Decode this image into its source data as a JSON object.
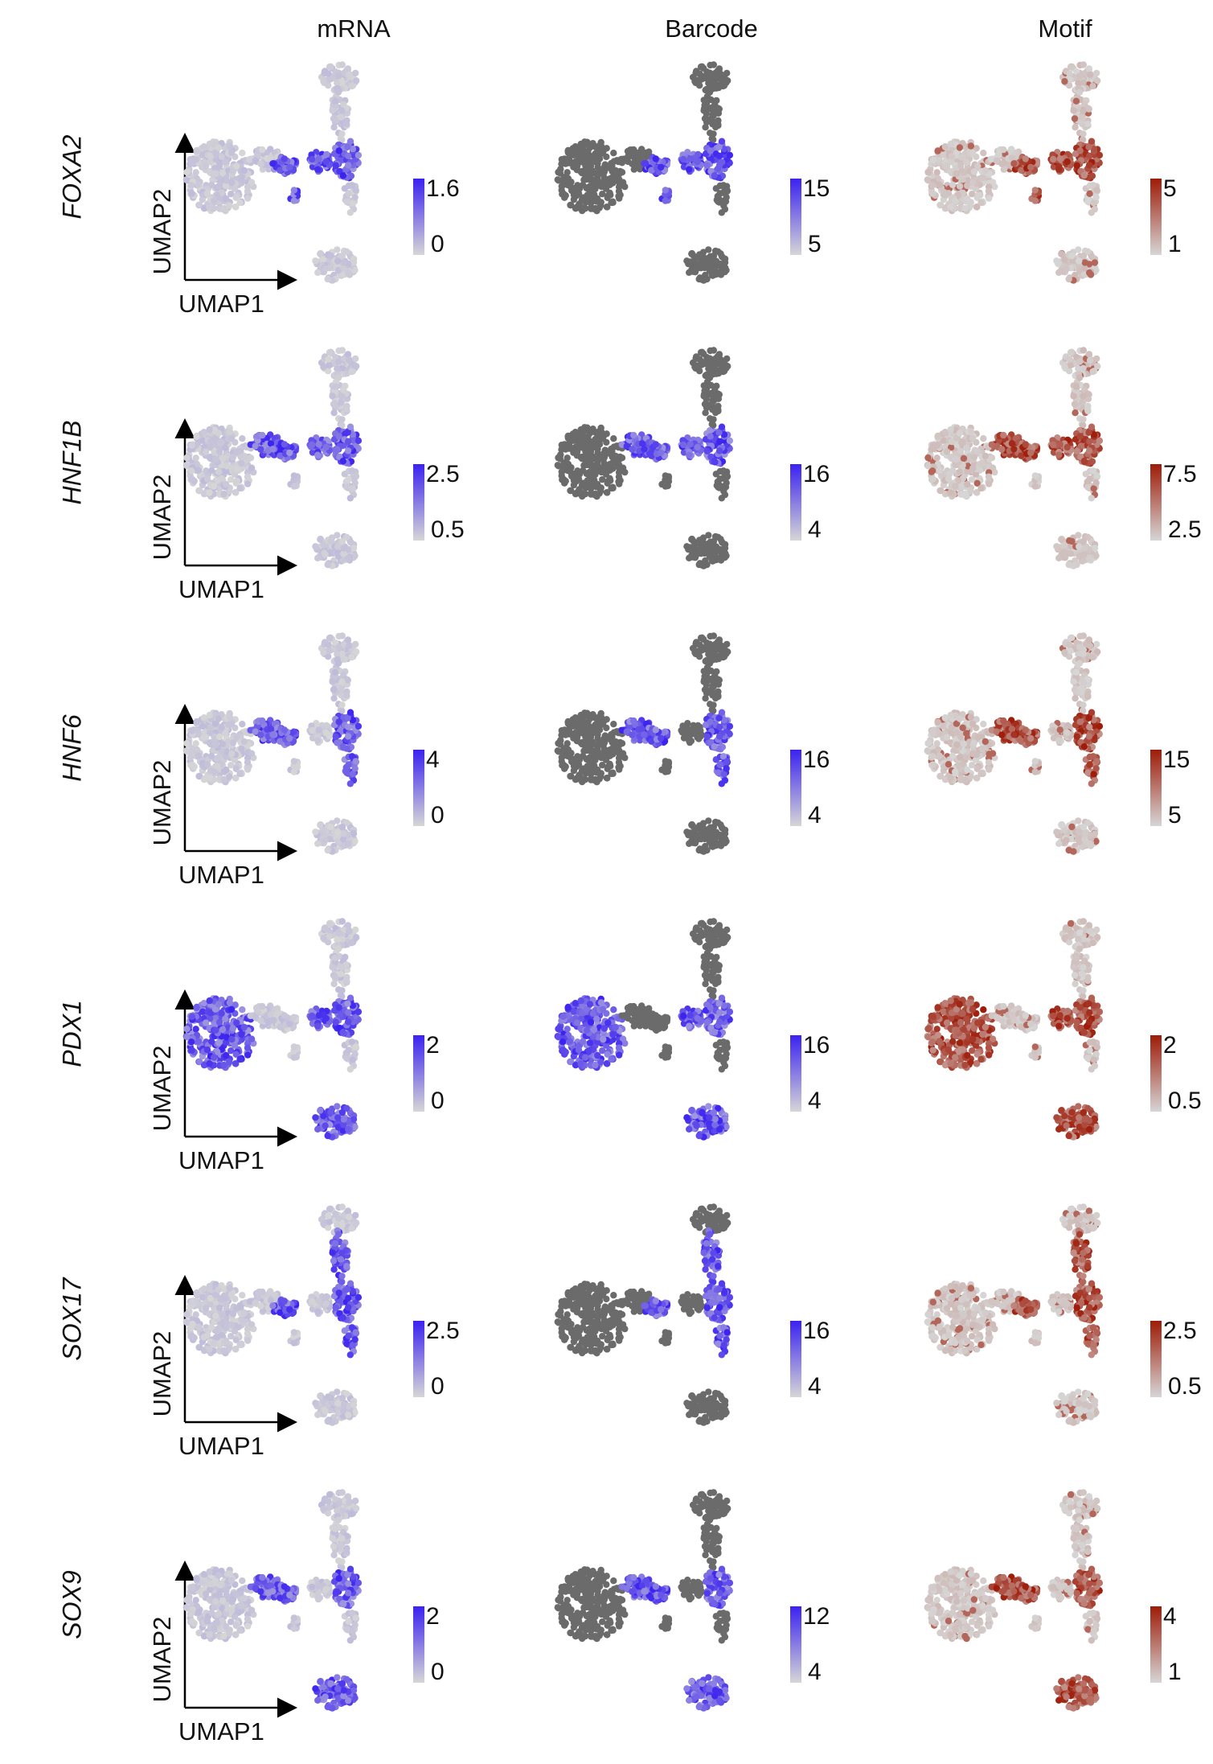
{
  "chart_data": {
    "type": "scatter",
    "columns": [
      {
        "title": "mRNA",
        "low_color": "#d6d6d6",
        "high_color": "#3b22f0",
        "background_color": "#d6d6d6"
      },
      {
        "title": "Barcode",
        "low_color": "#d6d6d6",
        "high_color": "#3b22f0",
        "background_color": "#6b6b6b"
      },
      {
        "title": "Motif",
        "low_color": "#d6d6d6",
        "high_color": "#9e1b08",
        "background_color": "#d6d6d6"
      }
    ],
    "xlabel": "UMAP1",
    "ylabel": "UMAP2",
    "rows": [
      {
        "gene": "FOXA2",
        "scales": [
          {
            "max": "1.6",
            "min": "0"
          },
          {
            "max": "15",
            "min": "5"
          },
          {
            "max": "5",
            "min": "1"
          }
        ]
      },
      {
        "gene": "HNF1B",
        "scales": [
          {
            "max": "2.5",
            "min": "0.5"
          },
          {
            "max": "16",
            "min": "4"
          },
          {
            "max": "7.5",
            "min": "2.5"
          }
        ]
      },
      {
        "gene": "HNF6",
        "scales": [
          {
            "max": "4",
            "min": "0"
          },
          {
            "max": "16",
            "min": "4"
          },
          {
            "max": "15",
            "min": "5"
          }
        ]
      },
      {
        "gene": "PDX1",
        "scales": [
          {
            "max": "2",
            "min": "0"
          },
          {
            "max": "16",
            "min": "4"
          },
          {
            "max": "2",
            "min": "0.5"
          }
        ]
      },
      {
        "gene": "SOX17",
        "scales": [
          {
            "max": "2.5",
            "min": "0"
          },
          {
            "max": "16",
            "min": "4"
          },
          {
            "max": "2.5",
            "min": "0.5"
          }
        ]
      },
      {
        "gene": "SOX9",
        "scales": [
          {
            "max": "2",
            "min": "0"
          },
          {
            "max": "12",
            "min": "4"
          },
          {
            "max": "4",
            "min": "1"
          }
        ]
      }
    ]
  }
}
